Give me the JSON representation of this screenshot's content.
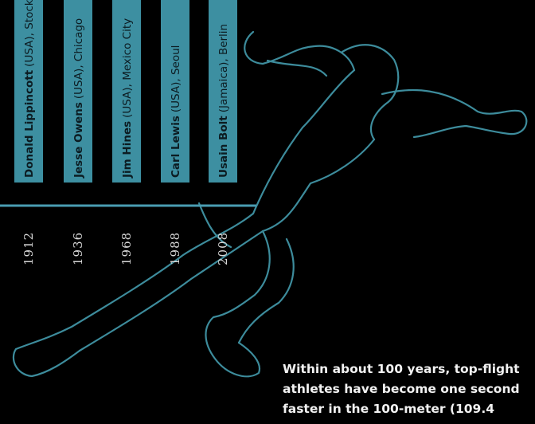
{
  "timeline": {
    "entries": [
      {
        "athlete": "Donald Lippincott",
        "details": "(USA), Stockholm",
        "year": "1912"
      },
      {
        "athlete": "Jesse Owens",
        "details": "(USA), Chicago",
        "year": "1936"
      },
      {
        "athlete": "Jim Hines",
        "details": "(USA), Mexico City",
        "year": "1968"
      },
      {
        "athlete": "Carl Lewis",
        "details": "(USA), Seoul",
        "year": "1988"
      },
      {
        "athlete": "Usain Bolt",
        "details": "(Jamaica), Berlin",
        "year": "2008"
      }
    ]
  },
  "caption": {
    "lines": [
      "Within about 100 years, top-flight",
      "athletes have become one second",
      "faster in the 100-meter (109.4"
    ]
  }
}
